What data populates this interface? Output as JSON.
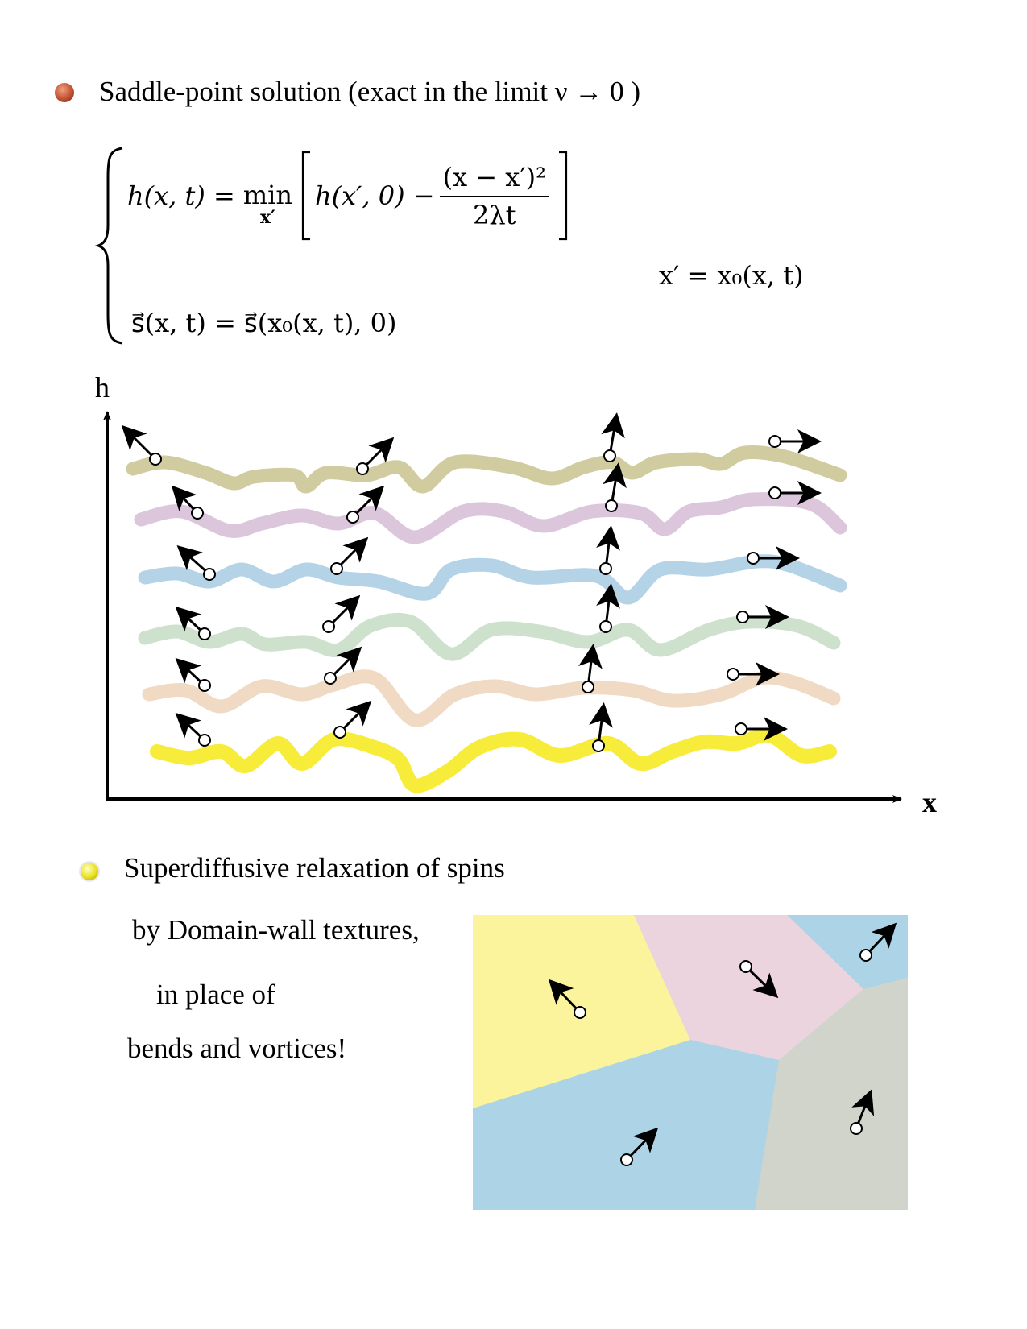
{
  "heading1": {
    "text": "Saddle-point solution  (exact in the limit ν → 0 )",
    "bullet_icon": "red-ball-bullet-icon"
  },
  "equations": {
    "eq1_lhs": "h(x, t) = ",
    "eq1_min": "min",
    "eq1_min_sub": "x′",
    "eq1_term": "h(x′, 0) −",
    "eq1_frac_num": "(x − x′)²",
    "eq1_frac_den": "2λt",
    "eq2": "s⃗(x, t) = s⃗(x₀(x, t), 0)",
    "side_eq": "x′ = x₀(x, t)"
  },
  "plot": {
    "y_axis_label": "h",
    "x_axis_label": "x",
    "curve_colors": [
      "#d0cc9f",
      "#dcc6dc",
      "#b4d3e7",
      "#cde1cd",
      "#f0dac4",
      "#f8ec3a"
    ]
  },
  "heading2": {
    "text": "Superdiffusive relaxation of spins",
    "bullet_icon": "yellow-ball-bullet-icon"
  },
  "lines": [
    "by Domain-wall textures,",
    "in place of",
    "bends and vortices!"
  ],
  "domains": {
    "colors": {
      "yellow": "#fbf49d",
      "pink": "#ecd4df",
      "blue": "#acd3e6",
      "gray": "#d0d4cb"
    }
  }
}
